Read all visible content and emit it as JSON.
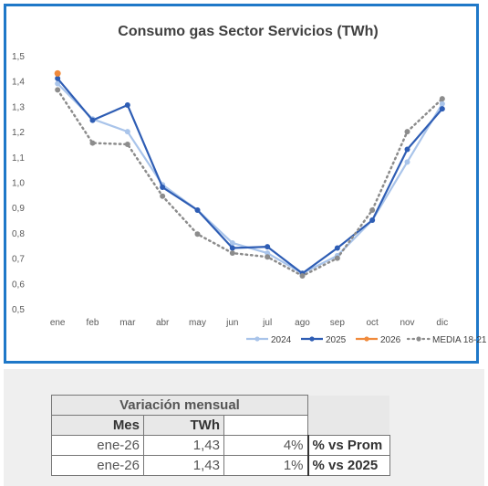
{
  "chart_data": {
    "type": "line",
    "title": "Consumo gas Sector Servicios (TWh)",
    "categories": [
      "ene",
      "feb",
      "mar",
      "abr",
      "may",
      "jun",
      "jul",
      "ago",
      "sep",
      "oct",
      "nov",
      "dic"
    ],
    "ylim": [
      0.5,
      1.5
    ],
    "yticks": [
      "0,5",
      "0,6",
      "0,7",
      "0,8",
      "0,9",
      "1,0",
      "1,1",
      "1,2",
      "1,3",
      "1,4",
      "1,5"
    ],
    "grid": false,
    "legend_position": "bottom-right",
    "series": [
      {
        "name": "2024",
        "color": "#a9c4ea",
        "style": "solid",
        "values": [
          1.39,
          1.25,
          1.2,
          0.99,
          0.89,
          0.76,
          0.72,
          0.64,
          0.71,
          0.85,
          1.08,
          1.31
        ]
      },
      {
        "name": "2025",
        "color": "#2e5db4",
        "style": "solid",
        "values": [
          1.41,
          1.245,
          1.305,
          0.98,
          0.89,
          0.74,
          0.745,
          0.64,
          0.74,
          0.85,
          1.13,
          1.29
        ]
      },
      {
        "name": "2026",
        "color": "#f08a3c",
        "style": "solid",
        "values": [
          1.43,
          null,
          null,
          null,
          null,
          null,
          null,
          null,
          null,
          null,
          null,
          null
        ]
      },
      {
        "name": "MEDIA 18-21",
        "color": "#8c8c8c",
        "style": "dotted",
        "values": [
          1.365,
          1.155,
          1.15,
          0.945,
          0.795,
          0.72,
          0.705,
          0.63,
          0.7,
          0.89,
          1.2,
          1.33
        ]
      }
    ]
  },
  "table": {
    "title": "Variación mensual",
    "col_mes": "Mes",
    "col_twh": "TWh",
    "rows": [
      {
        "mes": "ene-26",
        "twh": "1,43",
        "pct": "4%",
        "label": "% vs Prom"
      },
      {
        "mes": "ene-26",
        "twh": "1,43",
        "pct": "1%",
        "label": "% vs 2025"
      }
    ]
  }
}
